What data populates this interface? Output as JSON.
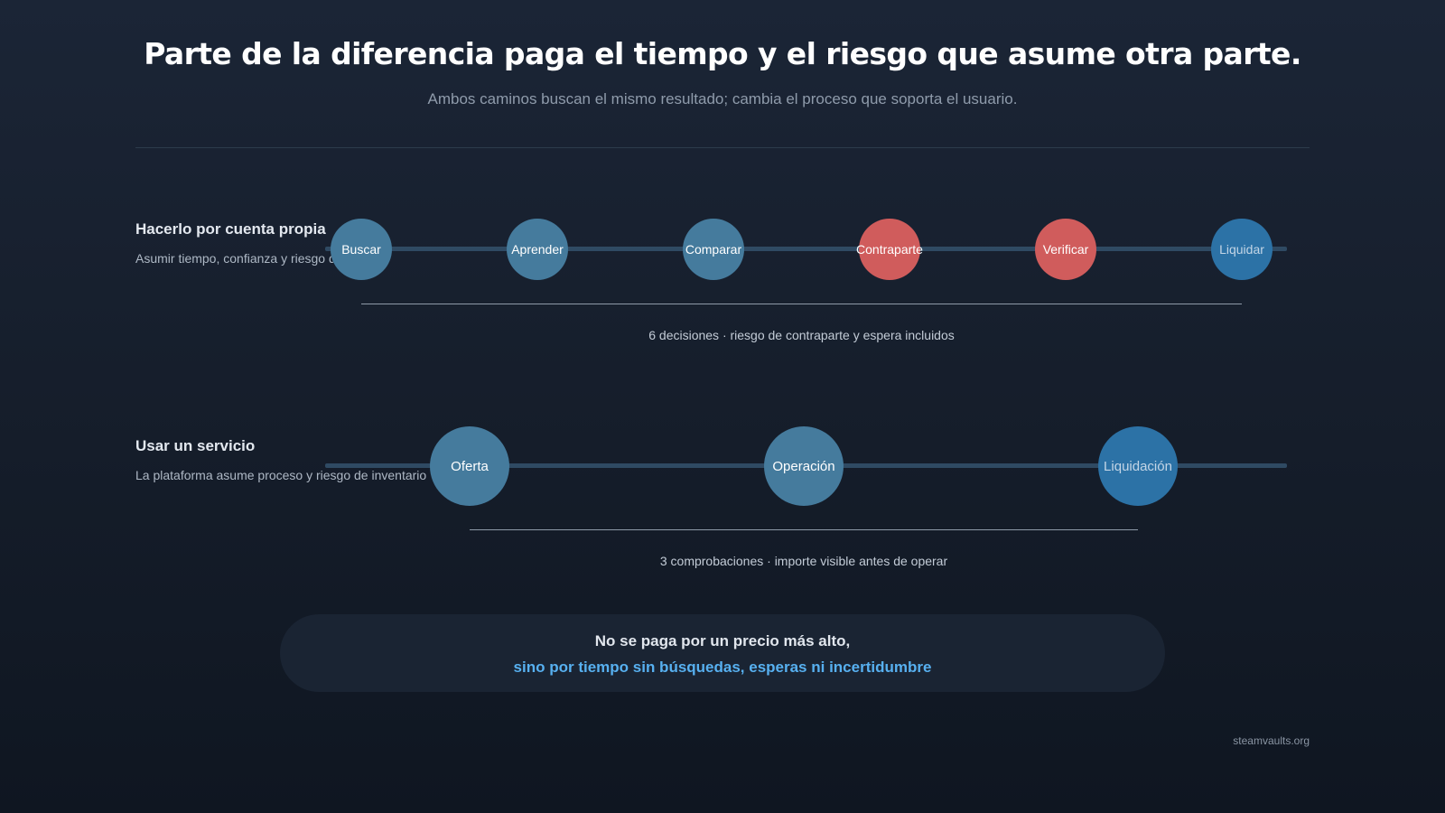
{
  "title": "Parte de la diferencia paga el tiempo y el riesgo que asume otra parte.",
  "subtitle": "Ambos caminos buscan el mismo resultado; cambia el proceso que soporta el usuario.",
  "colors": {
    "step": "#457b9d",
    "risk": "#d05c5c",
    "final": "#2c72a6",
    "highlight": "#57b0f0",
    "background": "#151d2a"
  },
  "paths": [
    {
      "label": "Hacerlo por cuenta propia",
      "description": "Asumir tiempo, confianza y riesgo de precio",
      "steps": [
        {
          "label": "Buscar",
          "kind": "step"
        },
        {
          "label": "Aprender",
          "kind": "step"
        },
        {
          "label": "Comparar",
          "kind": "step"
        },
        {
          "label": "Contraparte",
          "kind": "risk"
        },
        {
          "label": "Verificar",
          "kind": "risk"
        },
        {
          "label": "Liquidar",
          "kind": "final"
        }
      ],
      "summary": "6 decisiones · riesgo de contraparte y espera incluidos"
    },
    {
      "label": "Usar un servicio",
      "description": "La plataforma asume proceso y riesgo de inventario",
      "steps": [
        {
          "label": "Oferta",
          "kind": "step"
        },
        {
          "label": "Operación",
          "kind": "step"
        },
        {
          "label": "Liquidación",
          "kind": "final"
        }
      ],
      "summary": "3 comprobaciones · importe visible antes de operar"
    }
  ],
  "callout": {
    "line1": "No se paga por un precio más alto,",
    "line2": "sino por tiempo sin búsquedas, esperas ni incertidumbre"
  },
  "credit": "steamvaults.org"
}
